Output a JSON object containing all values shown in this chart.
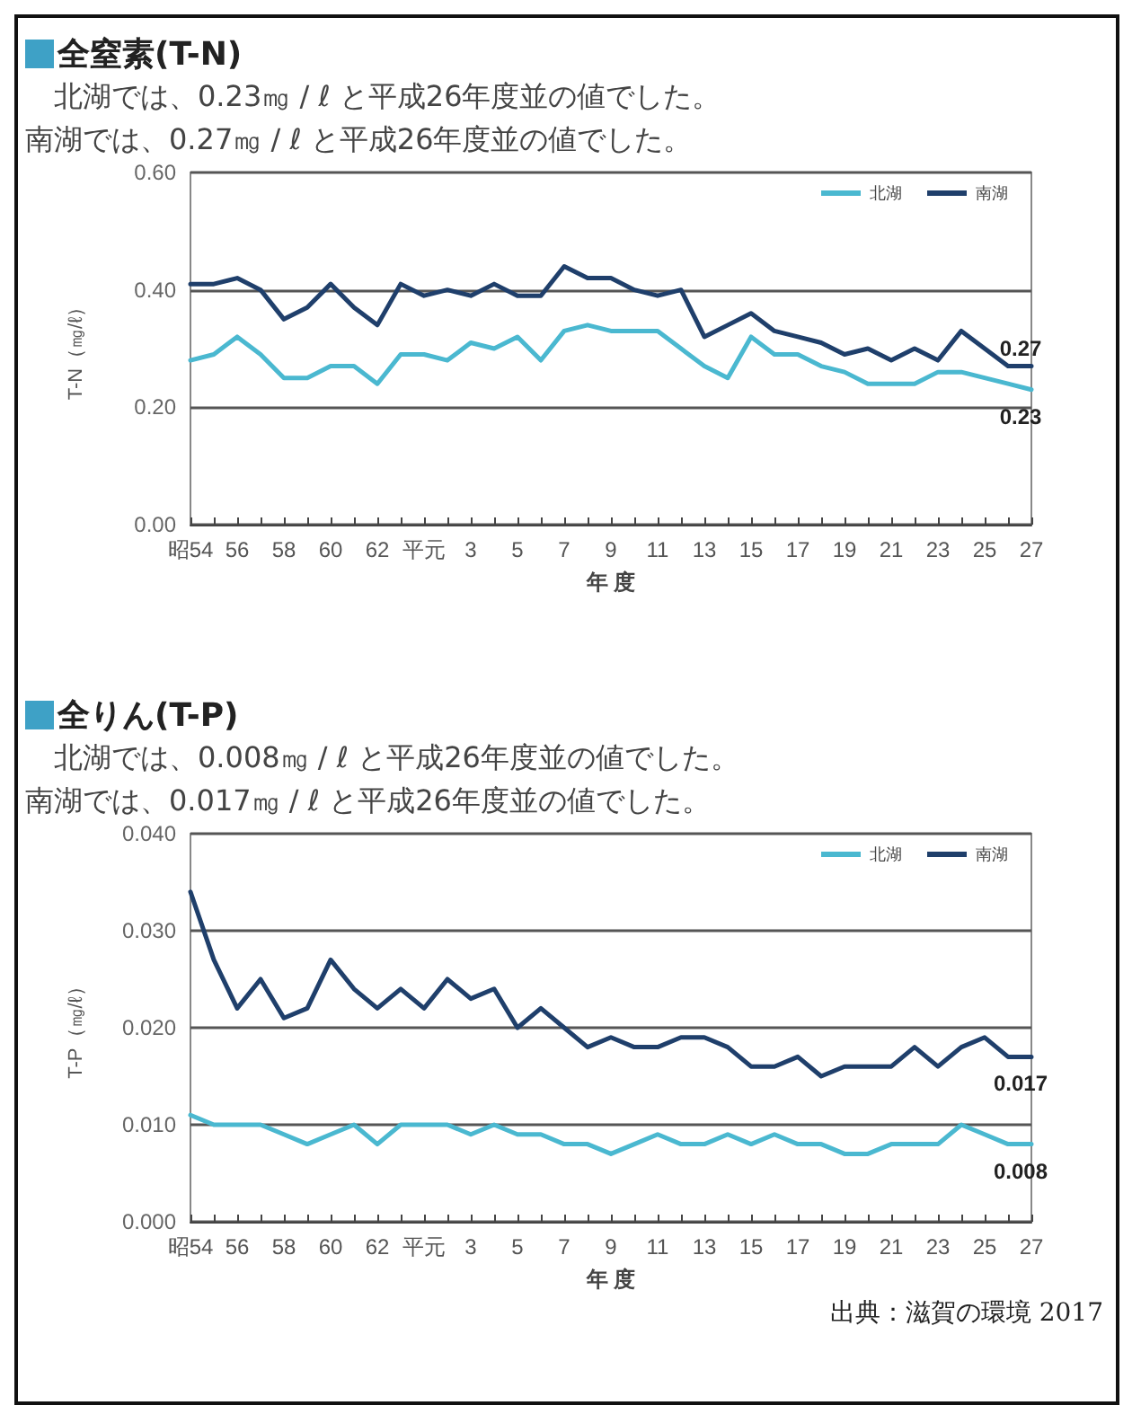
{
  "chart_data": [
    {
      "type": "line",
      "title": "全窒素(T-N)",
      "subtitle": "　北湖では、0.23㎎ / ℓ と平成26年度並の値でした。南湖では、0.27㎎ / ℓ と平成26年度並の値でした。",
      "xlabel": "年 度",
      "ylabel": "T-N（㎎/ℓ）",
      "categories": [
        "昭54",
        null,
        "56",
        null,
        "58",
        null,
        "60",
        null,
        "62",
        null,
        "平元",
        null,
        "3",
        null,
        "5",
        null,
        "7",
        null,
        "9",
        null,
        "11",
        null,
        "13",
        null,
        "15",
        null,
        "17",
        null,
        "19",
        null,
        "21",
        null,
        "23",
        null,
        "25",
        null,
        "27"
      ],
      "series": [
        {
          "name": "北湖",
          "color": "#4ab8d0",
          "values": [
            0.28,
            0.29,
            0.32,
            0.29,
            0.25,
            0.25,
            0.27,
            0.27,
            0.24,
            0.29,
            0.29,
            0.28,
            0.31,
            0.3,
            0.32,
            0.28,
            0.33,
            0.34,
            0.33,
            0.33,
            0.33,
            0.3,
            0.27,
            0.25,
            0.32,
            0.29,
            0.29,
            0.27,
            0.26,
            0.24,
            0.24,
            0.24,
            0.26,
            0.26,
            0.25,
            0.24,
            0.23
          ]
        },
        {
          "name": "南湖",
          "color": "#1f3f6b",
          "values": [
            0.41,
            0.41,
            0.42,
            0.4,
            0.35,
            0.37,
            0.41,
            0.37,
            0.34,
            0.41,
            0.39,
            0.4,
            0.39,
            0.41,
            0.39,
            0.39,
            0.44,
            0.42,
            0.42,
            0.4,
            0.39,
            0.4,
            0.32,
            0.34,
            0.36,
            0.33,
            0.32,
            0.31,
            0.29,
            0.3,
            0.28,
            0.3,
            0.28,
            0.33,
            0.3,
            0.27,
            0.27
          ]
        }
      ],
      "ylim": [
        0,
        0.6
      ],
      "yticks": [
        {
          "value": 0,
          "label": "0.00"
        },
        {
          "value": 0.2,
          "label": "0.20"
        },
        {
          "value": 0.4,
          "label": "0.40"
        },
        {
          "value": 0.6,
          "label": "0.60"
        }
      ],
      "grid": "y",
      "legend": "top right",
      "marker": "none",
      "line_style": "solid",
      "annotations": [
        {
          "text": "0.27",
          "x": "27",
          "y": 0.27
        },
        {
          "text": "0.23",
          "x": "27",
          "y": 0.23
        }
      ]
    },
    {
      "type": "line",
      "title": "全りん(T-P)",
      "subtitle": "　北湖では、0.008㎎ / ℓ と平成26年度並の値でした。南湖では、0.017㎎ / ℓ と平成26年度並の値でした。",
      "xlabel": "年 度",
      "ylabel": "T-P（㎎/ℓ）",
      "categories": [
        "昭54",
        null,
        "56",
        null,
        "58",
        null,
        "60",
        null,
        "62",
        null,
        "平元",
        null,
        "3",
        null,
        "5",
        null,
        "7",
        null,
        "9",
        null,
        "11",
        null,
        "13",
        null,
        "15",
        null,
        "17",
        null,
        "19",
        null,
        "21",
        null,
        "23",
        null,
        "25",
        null,
        "27"
      ],
      "series": [
        {
          "name": "北湖",
          "color": "#4ab8d0",
          "values": [
            0.011,
            0.01,
            0.01,
            0.01,
            0.009,
            0.008,
            0.009,
            0.01,
            0.008,
            0.01,
            0.01,
            0.01,
            0.009,
            0.01,
            0.009,
            0.009,
            0.008,
            0.008,
            0.007,
            0.008,
            0.009,
            0.008,
            0.008,
            0.009,
            0.008,
            0.009,
            0.008,
            0.008,
            0.007,
            0.007,
            0.008,
            0.008,
            0.008,
            0.01,
            0.009,
            0.008,
            0.008
          ]
        },
        {
          "name": "南湖",
          "color": "#1f3f6b",
          "values": [
            0.034,
            0.027,
            0.022,
            0.025,
            0.021,
            0.022,
            0.027,
            0.024,
            0.022,
            0.024,
            0.022,
            0.025,
            0.023,
            0.024,
            0.02,
            0.022,
            0.02,
            0.018,
            0.019,
            0.018,
            0.018,
            0.019,
            0.019,
            0.018,
            0.016,
            0.016,
            0.017,
            0.015,
            0.016,
            0.016,
            0.016,
            0.018,
            0.016,
            0.018,
            0.019,
            0.017,
            0.017
          ]
        }
      ],
      "ylim": [
        0,
        0.04
      ],
      "yticks": [
        {
          "value": 0,
          "label": "0.000"
        },
        {
          "value": 0.01,
          "label": "0.010"
        },
        {
          "value": 0.02,
          "label": "0.020"
        },
        {
          "value": 0.03,
          "label": "0.030"
        },
        {
          "value": 0.04,
          "label": "0.040"
        }
      ],
      "grid": "y",
      "legend": "top right",
      "marker": "none",
      "line_style": "solid",
      "annotations": [
        {
          "text": "0.017",
          "x": "27",
          "y": 0.017
        },
        {
          "text": "0.008",
          "x": "27",
          "y": 0.008
        },
        "出典：滋賀の環境 2017"
      ]
    }
  ]
}
